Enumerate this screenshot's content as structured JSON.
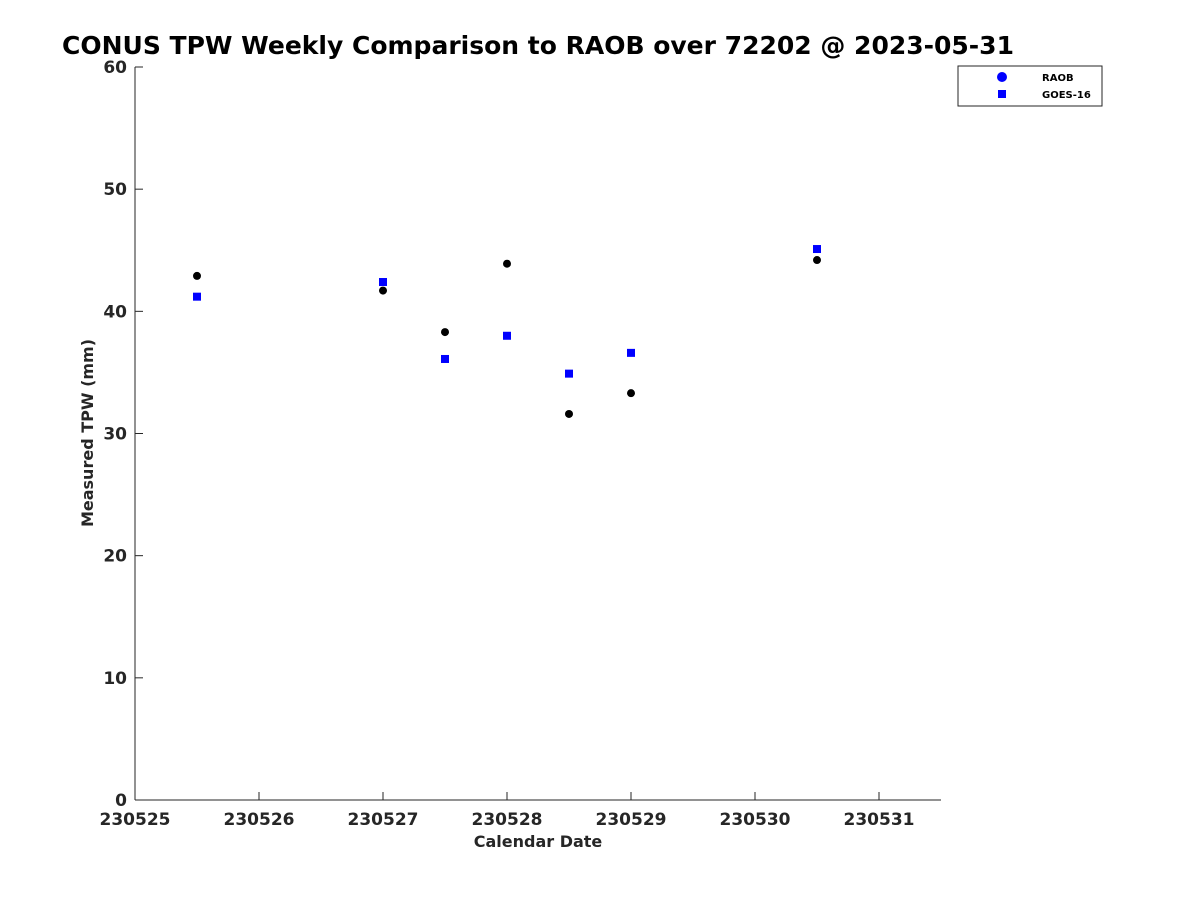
{
  "chart_data": {
    "type": "scatter",
    "title": "CONUS TPW Weekly Comparison to RAOB over 72202 @ 2023-05-31",
    "xlabel": "Calendar Date",
    "ylabel": "Measured TPW (mm)",
    "xlim": [
      "2023-05-25",
      "2023-05-31 12:00"
    ],
    "ylim": [
      0,
      60
    ],
    "x_ticks": [
      {
        "value": "2023-05-25",
        "label": "230525"
      },
      {
        "value": "2023-05-26",
        "label": "230526"
      },
      {
        "value": "2023-05-27",
        "label": "230527"
      },
      {
        "value": "2023-05-28",
        "label": "230528"
      },
      {
        "value": "2023-05-29",
        "label": "230529"
      },
      {
        "value": "2023-05-30",
        "label": "230530"
      },
      {
        "value": "2023-05-31",
        "label": "230531"
      }
    ],
    "y_ticks": [
      0,
      10,
      20,
      30,
      40,
      50,
      60
    ],
    "grid": false,
    "legend_position": "top-right",
    "series": [
      {
        "name": "RAOB",
        "marker": "circle",
        "legend_color": "#0000ff",
        "point_color": "#000000",
        "points": [
          {
            "x": "2023-05-25 12:00",
            "y": 42.9
          },
          {
            "x": "2023-05-27 00:00",
            "y": 41.7
          },
          {
            "x": "2023-05-27 12:00",
            "y": 38.3
          },
          {
            "x": "2023-05-28 00:00",
            "y": 43.9
          },
          {
            "x": "2023-05-28 12:00",
            "y": 31.6
          },
          {
            "x": "2023-05-29 00:00",
            "y": 33.3
          },
          {
            "x": "2023-05-30 12:00",
            "y": 44.2
          }
        ]
      },
      {
        "name": "GOES-16",
        "marker": "square",
        "legend_color": "#0000ff",
        "point_color": "#0000ff",
        "points": [
          {
            "x": "2023-05-25 12:00",
            "y": 41.2
          },
          {
            "x": "2023-05-27 00:00",
            "y": 42.4
          },
          {
            "x": "2023-05-27 12:00",
            "y": 36.1
          },
          {
            "x": "2023-05-28 00:00",
            "y": 38.0
          },
          {
            "x": "2023-05-28 12:00",
            "y": 34.9
          },
          {
            "x": "2023-05-29 00:00",
            "y": 36.6
          },
          {
            "x": "2023-05-30 12:00",
            "y": 45.1
          }
        ]
      }
    ]
  }
}
